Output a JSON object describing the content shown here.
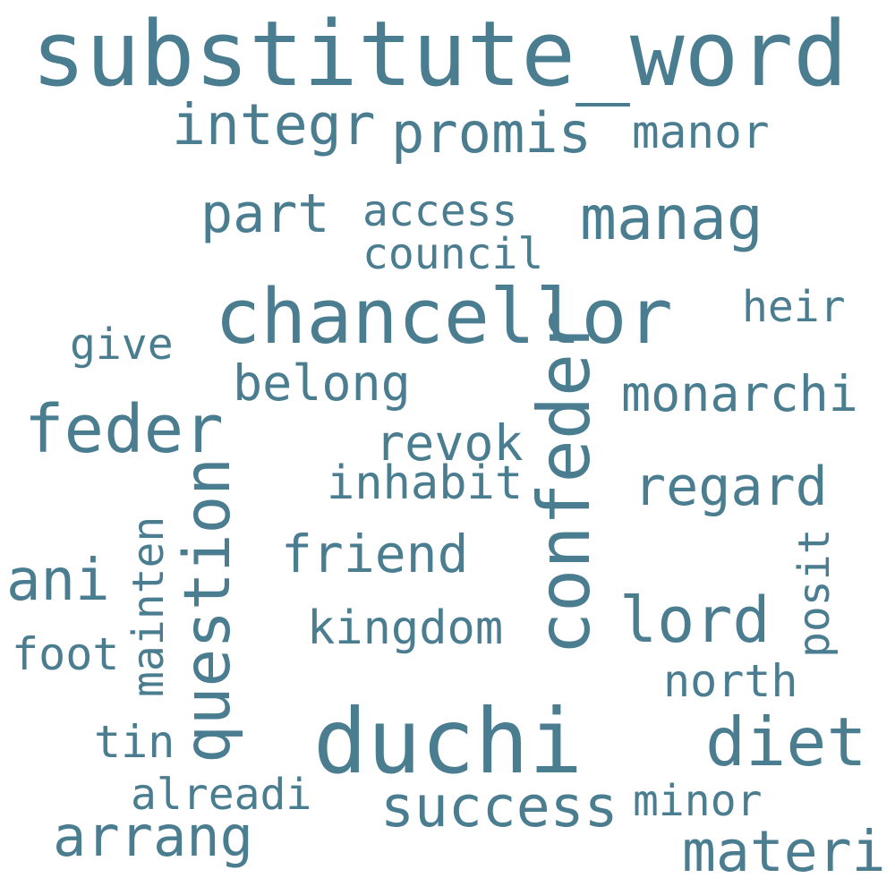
{
  "word_color": "#4a7d8f",
  "background_color": "#ffffff",
  "words": [
    "substitute_word",
    "integr",
    "promis",
    "manor",
    "part",
    "access",
    "council",
    "manag",
    "chancellor",
    "heir",
    "give",
    "belong",
    "monarchi",
    "feder",
    "revok",
    "confeder",
    "inhabit",
    "regard",
    "question",
    "ani",
    "mainten",
    "friend",
    "posit",
    "lord",
    "kingdom",
    "foot",
    "north",
    "duchi",
    "diet",
    "tin",
    "alreadi",
    "success",
    "minor",
    "arrang",
    "materi"
  ]
}
